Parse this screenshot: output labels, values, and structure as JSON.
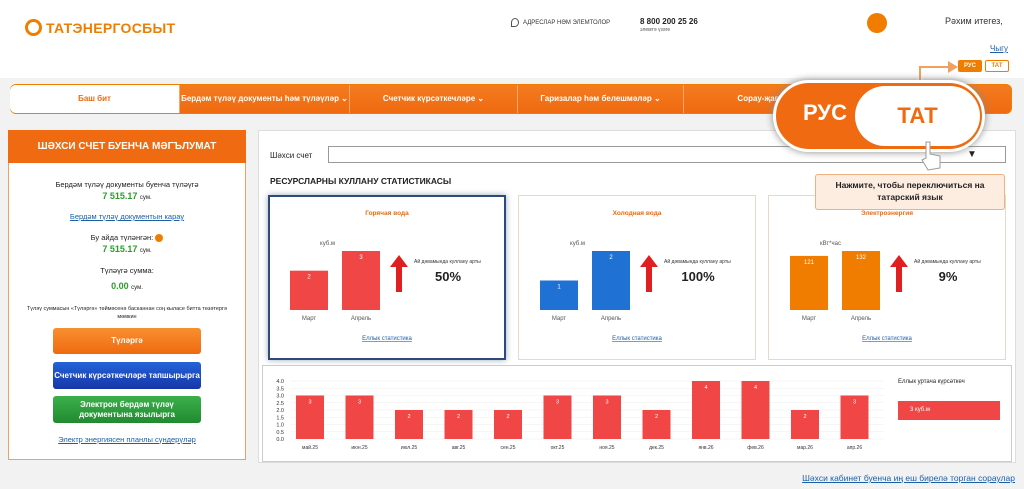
{
  "header": {
    "logo": "ТАТЭНЕРГОСБЫТ",
    "address": "АДРЕСЛАР НӘМ ЭЛЕМТОЛОР",
    "phone": "8 800 200 25 26",
    "phone_note": "элемтә үзәге",
    "greeting": "Рәхим итегез,",
    "logout": "Чыгу",
    "languages": [
      "РУС",
      "ТАТ"
    ]
  },
  "nav": [
    "Баш бит",
    "Бердәм түләү документы һәм түләүләр",
    "Счетчик күрсәткечләре",
    "Гаризалар һәм белешмәләр",
    "Сорау-җав"
  ],
  "account_panel": {
    "title": "ШӘХСИ СЧЕТ БУЕНЧА МӘГЪЛУМАТ",
    "due_label": "Бердәм түләү документы буенча түләүгә",
    "due_amount": "7 515.17",
    "currency": "сум.",
    "view_link": "Бердәм түләү документын карау",
    "paid_label": "Бу айда түләнгән:",
    "paid_amount": "7 515.17",
    "to_pay_label": "Түләүгә сумма:",
    "to_pay_amount": "0.00",
    "note": "Түләү суммасын «Түләргә» төймәсенә басканнан соң кыласе битта төзәтергә мөмкин",
    "buttons": [
      "Түләргә",
      "Счетчик күрсәткечләре тапшырырга",
      "Электрон бердәм түләү документына язылырга"
    ],
    "outage_link": "Электр энергиясен планлы сүндерүләр"
  },
  "main": {
    "account_label": "Шәхси счет",
    "stats_title": "РЕСУРСЛАРНЫ КУЛЛАНУ СТАТИСТИКАСЫ",
    "cards": [
      {
        "title": "Горячая вода",
        "unit": "куб.м",
        "color": "#f04646",
        "categories": [
          "Март",
          "Апрель"
        ],
        "values": [
          2,
          3
        ],
        "growth_text": "Ай дәвамында куллану арты",
        "growth": "50%",
        "link": "Еллык статистика"
      },
      {
        "title": "Холодная вода",
        "unit": "куб.м",
        "color": "#1f72d4",
        "categories": [
          "Март",
          "Апрель"
        ],
        "values": [
          1,
          2
        ],
        "growth_text": "Ай дәвамында куллану арты",
        "growth": "100%",
        "link": "Еллык статистика"
      },
      {
        "title": "Электроэнергия",
        "unit": "кВт*час",
        "color": "#f07d00",
        "categories": [
          "Март",
          "Апрель"
        ],
        "values": [
          121,
          132
        ],
        "growth_text": "Ай дәвамында куллану арты",
        "growth": "9%",
        "link": "Еллык статистика"
      }
    ],
    "annual": {
      "type": "bar",
      "color": "#f04646",
      "categories": [
        "май.25",
        "июн.25",
        "июл.25",
        "авг.25",
        "сен.25",
        "окт.25",
        "ноя.25",
        "дек.25",
        "янв.26",
        "фев.26",
        "мар.26",
        "апр.26"
      ],
      "values": [
        3,
        3,
        2,
        2,
        2,
        3,
        3,
        2,
        4,
        4,
        2,
        3
      ],
      "ylim": [
        0,
        4
      ],
      "yticks": [
        {
          "value": 0,
          "label": "0.0"
        },
        0.5,
        {
          "value": 1,
          "label": "1.0"
        },
        1.5,
        {
          "value": 2,
          "label": "2.0"
        },
        2.5,
        {
          "value": 3,
          "label": "3.0"
        },
        3.5,
        {
          "value": 4,
          "label": "4.0"
        }
      ],
      "legend_title": "Еллык уртача күрсәткеч",
      "legend_value": "3 куб.м"
    }
  },
  "callout": {
    "languages": [
      "РУС",
      "ТАТ"
    ],
    "tooltip": "Нажмите, чтобы переключиться на татарский язык"
  },
  "footer_link": "Шәхси кабинет буенча иң еш бирелә торган сораулар"
}
